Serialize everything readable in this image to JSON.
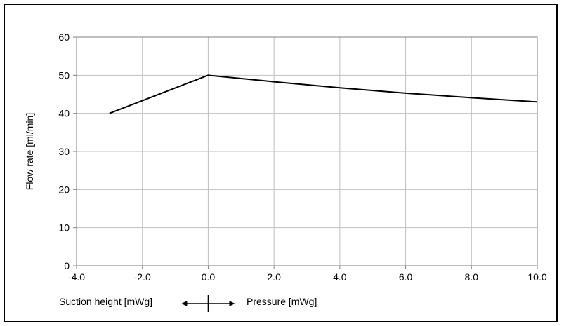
{
  "chart_data": {
    "type": "line",
    "title": "",
    "xlabel": "",
    "ylabel": "Flow rate [ml/min]",
    "xlim": [
      -4.0,
      10.0
    ],
    "ylim": [
      0,
      60
    ],
    "grid": true,
    "x_ticks": [
      "-4.0",
      "-2.0",
      "0.0",
      "2.0",
      "4.0",
      "6.0",
      "8.0",
      "10.0"
    ],
    "y_ticks": [
      "0",
      "10",
      "20",
      "30",
      "40",
      "50",
      "60"
    ],
    "series": [
      {
        "x": [
          -3.0,
          0.0,
          2.0,
          4.0,
          6.0,
          8.0,
          10.0
        ],
        "y": [
          40,
          50,
          48.3,
          46.7,
          45.3,
          44.1,
          43
        ]
      }
    ],
    "annotations": {
      "left_label": "Suction height [mWg]",
      "right_label": "Pressure [mWg]"
    },
    "colors": {
      "line": "#000000",
      "grid": "#bfbfbf",
      "axis": "#808080"
    }
  }
}
